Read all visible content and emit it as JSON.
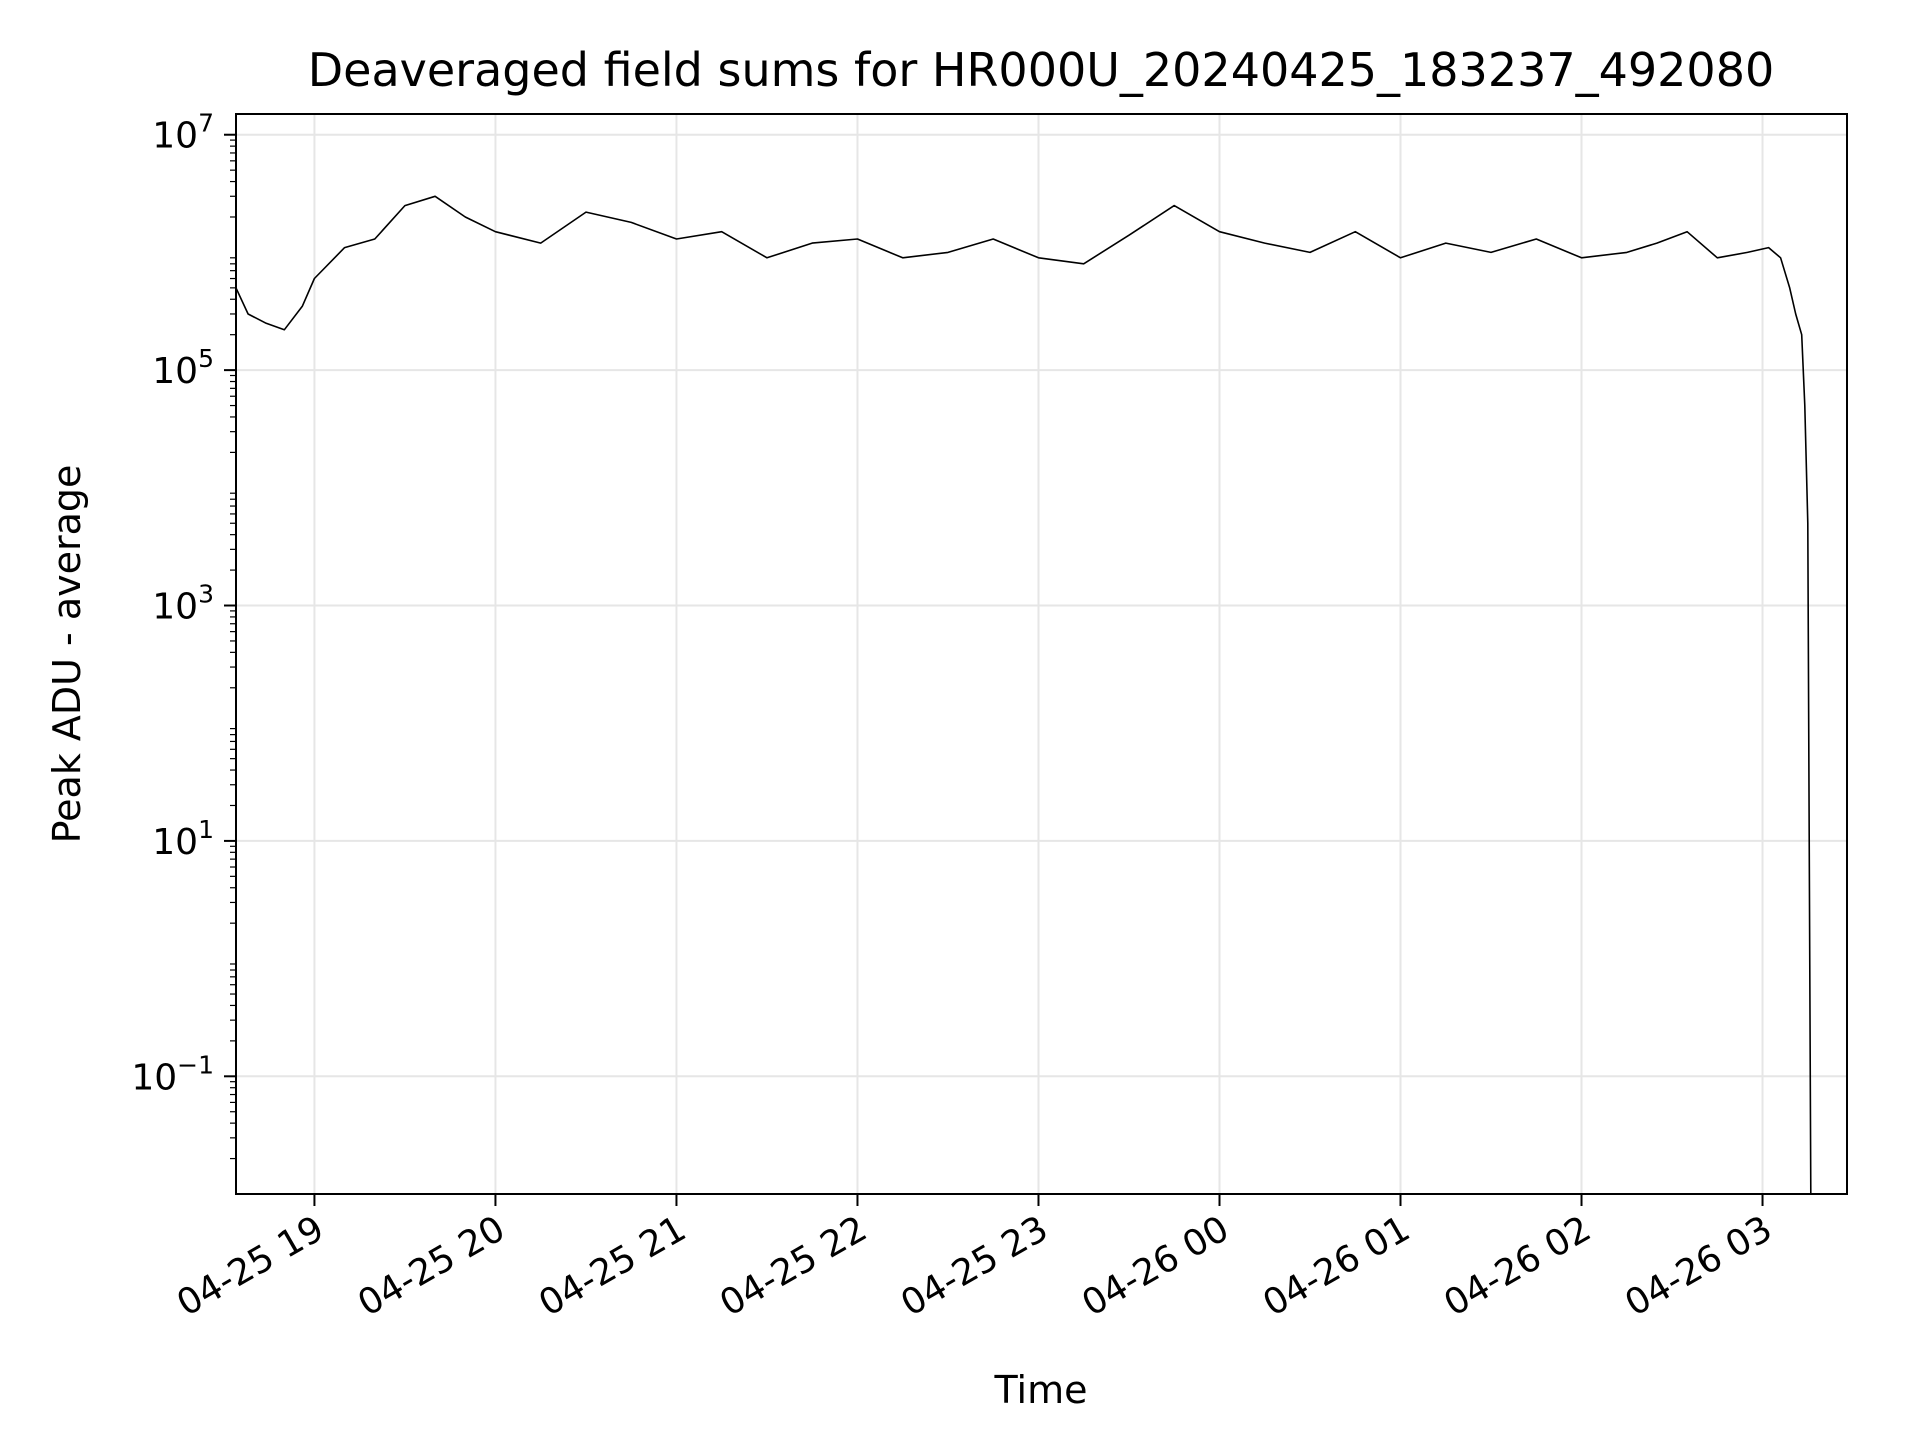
{
  "chart_data": {
    "type": "line",
    "title": "Deaveraged field sums for HR000U_20240425_183237_492080",
    "xlabel": "Time",
    "ylabel": "Peak ADU - average",
    "yscale": "log",
    "grid": true,
    "xlim": [
      "2024-04-25 18:34",
      "2024-04-26 03:28"
    ],
    "ylim": [
      0.01,
      15000000
    ],
    "x_ticks": [
      {
        "t": "2024-04-25 19:00",
        "label": "04-25 19"
      },
      {
        "t": "2024-04-25 20:00",
        "label": "04-25 20"
      },
      {
        "t": "2024-04-25 21:00",
        "label": "04-25 21"
      },
      {
        "t": "2024-04-25 22:00",
        "label": "04-25 22"
      },
      {
        "t": "2024-04-25 23:00",
        "label": "04-25 23"
      },
      {
        "t": "2024-04-26 00:00",
        "label": "04-26 00"
      },
      {
        "t": "2024-04-26 01:00",
        "label": "04-26 01"
      },
      {
        "t": "2024-04-26 02:00",
        "label": "04-26 02"
      },
      {
        "t": "2024-04-26 03:00",
        "label": "04-26 03"
      }
    ],
    "y_ticks": [
      {
        "value": 0.1,
        "base": "10",
        "exp": "−1"
      },
      {
        "value": 10,
        "base": "10",
        "exp": "1"
      },
      {
        "value": 1000,
        "base": "10",
        "exp": "3"
      },
      {
        "value": 100000,
        "base": "10",
        "exp": "5"
      },
      {
        "value": 10000000,
        "base": "10",
        "exp": "7"
      }
    ],
    "series": [
      {
        "color": "#000000",
        "x": [
          "2024-04-25 18:34",
          "2024-04-25 18:38",
          "2024-04-25 18:44",
          "2024-04-25 18:50",
          "2024-04-25 18:56",
          "2024-04-25 19:00",
          "2024-04-25 19:10",
          "2024-04-25 19:20",
          "2024-04-25 19:30",
          "2024-04-25 19:40",
          "2024-04-25 19:50",
          "2024-04-25 20:00",
          "2024-04-25 20:15",
          "2024-04-25 20:30",
          "2024-04-25 20:45",
          "2024-04-25 21:00",
          "2024-04-25 21:15",
          "2024-04-25 21:30",
          "2024-04-25 21:45",
          "2024-04-25 22:00",
          "2024-04-25 22:15",
          "2024-04-25 22:30",
          "2024-04-25 22:45",
          "2024-04-25 23:00",
          "2024-04-25 23:15",
          "2024-04-25 23:30",
          "2024-04-25 23:45",
          "2024-04-26 00:00",
          "2024-04-26 00:15",
          "2024-04-26 00:30",
          "2024-04-26 00:45",
          "2024-04-26 01:00",
          "2024-04-26 01:15",
          "2024-04-26 01:30",
          "2024-04-26 01:45",
          "2024-04-26 02:00",
          "2024-04-26 02:15",
          "2024-04-26 02:25",
          "2024-04-26 02:35",
          "2024-04-26 02:45",
          "2024-04-26 02:55",
          "2024-04-26 03:02",
          "2024-04-26 03:06",
          "2024-04-26 03:09",
          "2024-04-26 03:11",
          "2024-04-26 03:13",
          "2024-04-26 03:14",
          "2024-04-26 03:15",
          "2024-04-26 03:16"
        ],
        "values": [
          500000,
          300000,
          250000,
          220000,
          350000,
          600000,
          1100000,
          1300000,
          2500000,
          3000000,
          2000000,
          1500000,
          1200000,
          2200000,
          1800000,
          1300000,
          1500000,
          900000,
          1200000,
          1300000,
          900000,
          1000000,
          1300000,
          900000,
          800000,
          1400000,
          2500000,
          1500000,
          1200000,
          1000000,
          1500000,
          900000,
          1200000,
          1000000,
          1300000,
          900000,
          1000000,
          1200000,
          1500000,
          900000,
          1000000,
          1100000,
          900000,
          500000,
          300000,
          200000,
          50000,
          5000,
          0.01
        ]
      }
    ]
  }
}
